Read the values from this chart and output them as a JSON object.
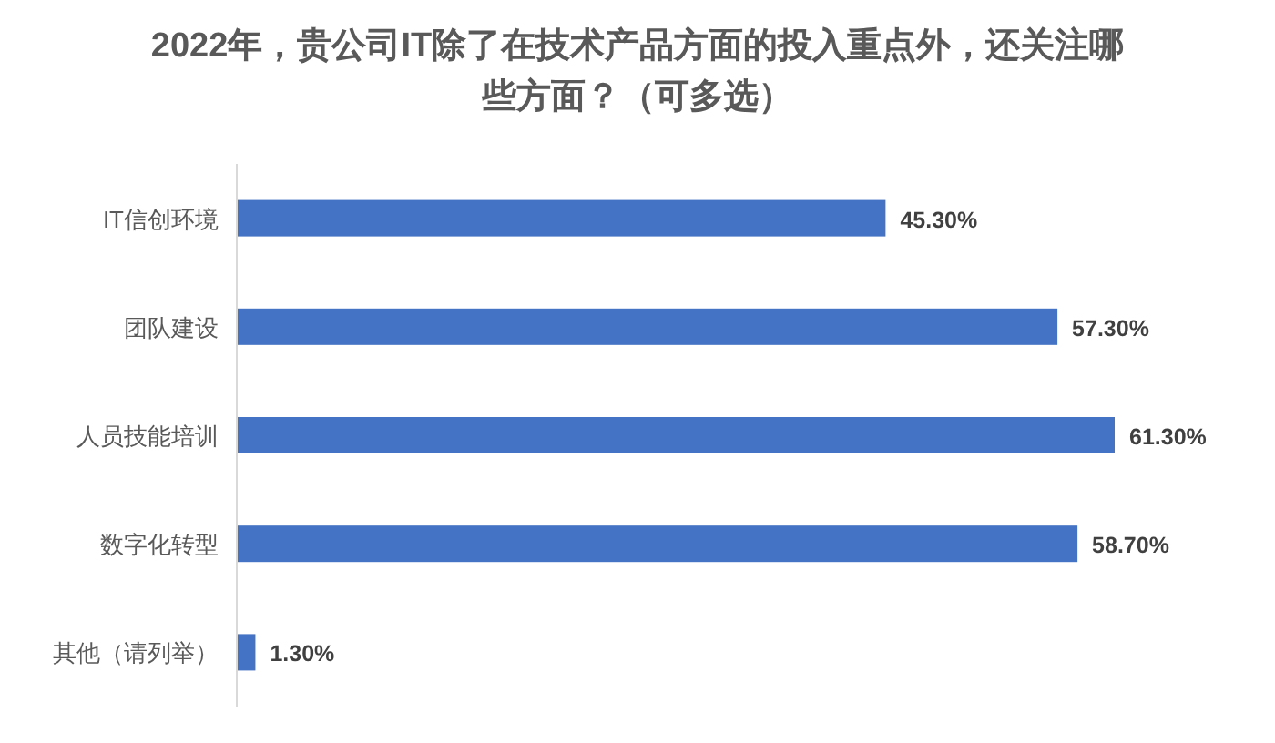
{
  "chart_data": {
    "type": "bar",
    "orientation": "horizontal",
    "title": "2022年，贵公司IT除了在技术产品方面的投入重点外，还关注哪些方面？（可多选）",
    "categories": [
      "IT信创环境",
      "团队建设",
      "人员技能培训",
      "数字化转型",
      "其他（请列举）"
    ],
    "values": [
      45.3,
      57.3,
      61.3,
      58.7,
      1.3
    ],
    "value_labels": [
      "45.30%",
      "57.30%",
      "61.30%",
      "58.70%",
      "1.30%"
    ],
    "color": "#4472c4"
  }
}
